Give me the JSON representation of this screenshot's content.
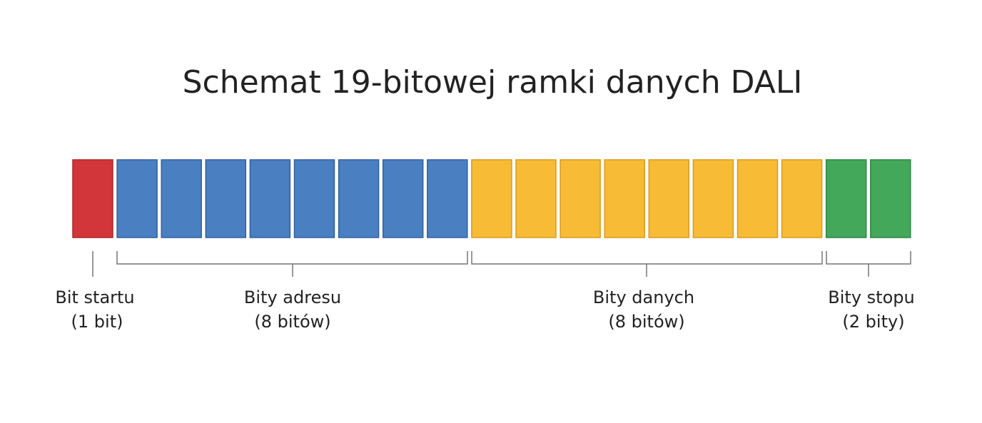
{
  "title": "Schemat 19-bitowej ramki danych DALI",
  "groups": [
    {
      "label": "Bit startu",
      "detail": "(1 bit)"
    },
    {
      "label": "Bity adresu",
      "detail": "(8 bitów)"
    },
    {
      "label": "Bity danych",
      "detail": "(8 bitów)"
    },
    {
      "label": "Bity stopu",
      "detail": "(2 bity)"
    }
  ]
}
